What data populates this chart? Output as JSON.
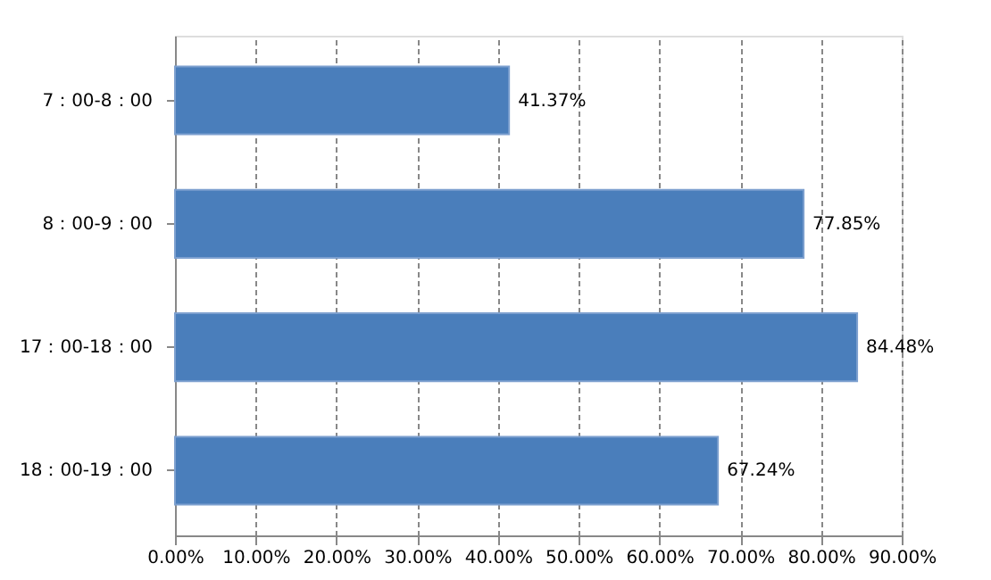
{
  "chart_data": {
    "type": "bar",
    "orientation": "horizontal",
    "categories": [
      "7：00-8：00",
      "8：00-9：00",
      "17：00-18：00",
      "18：00-19：00"
    ],
    "values": [
      41.37,
      77.85,
      84.48,
      67.24
    ],
    "value_labels": [
      "41.37%",
      "77.85%",
      "84.48%",
      "67.24%"
    ],
    "color": "#4a7ebb",
    "xlim": [
      0,
      90
    ],
    "xticks": [
      {
        "value": 0,
        "label": "0.00%"
      },
      {
        "value": 10,
        "label": "10.00%"
      },
      {
        "value": 20,
        "label": "20.00%"
      },
      {
        "value": 30,
        "label": "30.00%"
      },
      {
        "value": 40,
        "label": "40.00%"
      },
      {
        "value": 50,
        "label": "50.00%"
      },
      {
        "value": 60,
        "label": "60.00%"
      },
      {
        "value": 70,
        "label": "70.00%"
      },
      {
        "value": 80,
        "label": "80.00%"
      },
      {
        "value": 90,
        "label": "90.00%"
      }
    ],
    "grid": "x"
  }
}
